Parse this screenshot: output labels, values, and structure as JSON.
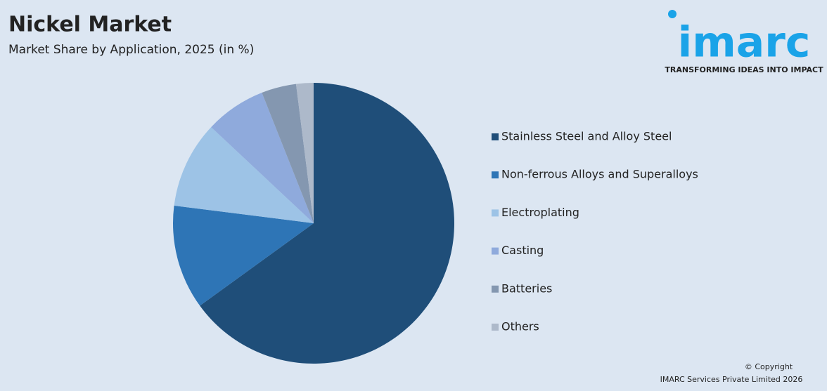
{
  "chart_data": {
    "type": "pie",
    "title": "Nickel Market",
    "subtitle": "Market Share by Application, 2025 (in %)",
    "categories": [
      "Stainless Steel and Alloy Steel",
      "Non-ferrous Alloys and Superalloys",
      "Electroplating",
      "Casting",
      "Batteries",
      "Others"
    ],
    "values": [
      65,
      12,
      10,
      7,
      4,
      2
    ],
    "colors": [
      "#1f4e79",
      "#2e75b6",
      "#9dc3e6",
      "#8faadc",
      "#8497b0",
      "#adb9ca"
    ],
    "legend": "right"
  },
  "logo": {
    "name": "imarc",
    "tagline": "TRANSFORMING IDEAS INTO IMPACT"
  },
  "footer": {
    "copyright": "© Copyright",
    "owner": "IMARC Services Private Limited 2026"
  }
}
